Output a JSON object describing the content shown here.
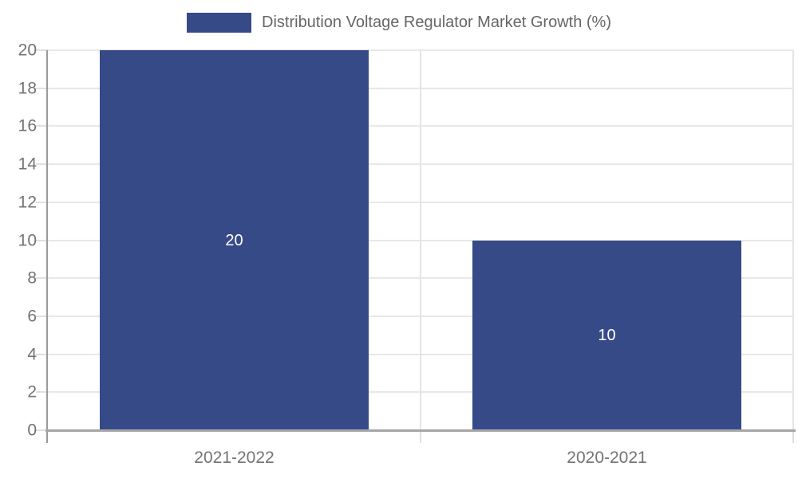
{
  "legend": {
    "label": "Distribution Voltage Regulator Market Growth (%)"
  },
  "colors": {
    "bar": "#374a88",
    "grid": "#e8e8e8",
    "axis": "#9a9a9a",
    "label_text": "#737373",
    "legend_text": "#666666",
    "value_label": "#ffffff",
    "background": "#ffffff"
  },
  "chart_data": {
    "type": "bar",
    "title": "Distribution Voltage Regulator Market Growth (%)",
    "categories": [
      "2021-2022",
      "2020-2021"
    ],
    "values": [
      20,
      10
    ],
    "bar_labels": [
      "20",
      "10"
    ],
    "series": [
      {
        "name": "Distribution Voltage Regulator Market Growth (%)",
        "values": [
          20,
          10
        ]
      }
    ],
    "xlabel": "",
    "ylabel": "",
    "ylim": [
      0,
      20
    ],
    "ytick_step": 2,
    "ytick_labels": [
      "0",
      "2",
      "4",
      "6",
      "8",
      "10",
      "12",
      "14",
      "16",
      "18",
      "20"
    ],
    "grid": true,
    "legend_position": "top",
    "bar_width_fraction": 0.722
  }
}
